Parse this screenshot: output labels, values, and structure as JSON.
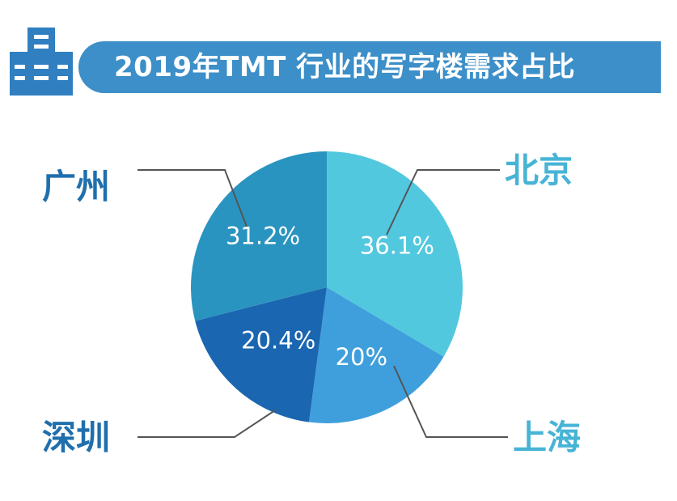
{
  "title": "2019年TMT 行业的写字楼需求占比",
  "colors": {
    "banner": "#3c8fc8",
    "icon": "#2f7fc1",
    "leader": "#555555",
    "label_dark": "#1f6fad",
    "label_light": "#47b4d6"
  },
  "icon_name": "office-building-icon",
  "chart_data": {
    "type": "pie",
    "title": "2019年TMT 行业的写字楼需求占比",
    "start_angle_deg": 0,
    "direction": "clockwise",
    "slices": [
      {
        "category": "北京",
        "value": 36.1,
        "value_label": "36.1%",
        "color": "#52c8df"
      },
      {
        "category": "上海",
        "value": 20,
        "value_label": "20%",
        "color": "#3f9fdc"
      },
      {
        "category": "深圳",
        "value": 20.4,
        "value_label": "20.4%",
        "color": "#1a66b0"
      },
      {
        "category": "广州",
        "value": 31.2,
        "value_label": "31.2%",
        "color": "#2a94c0"
      }
    ]
  }
}
